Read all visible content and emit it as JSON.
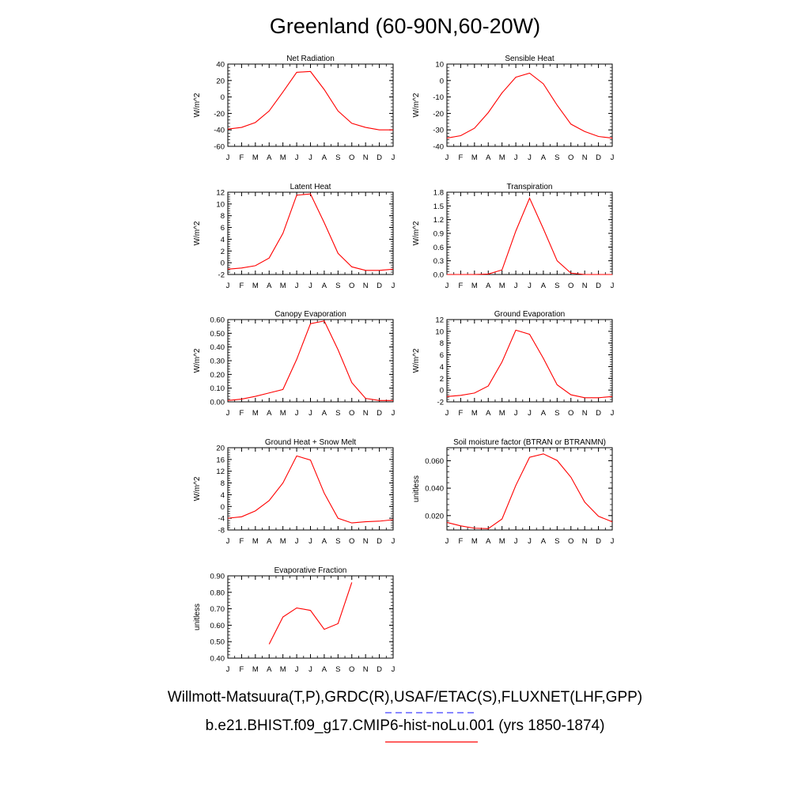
{
  "figure": {
    "title": "Greenland (60-90N,60-20W)",
    "legend": [
      {
        "label": "Willmott-Matsuura(T,P),GRDC(R),USAF/ETAC(S),FLUXNET(LHF,GPP)",
        "color": "#4040ff",
        "style": "dashed"
      },
      {
        "label": "b.e21.BHIST.f09_g17.CMIP6-hist-noLu.001 (yrs 1850-1874)",
        "color": "#ff0000",
        "style": "solid"
      }
    ],
    "line_color": "#ff0000"
  },
  "chart_data": [
    {
      "type": "line",
      "title": "Net Radiation",
      "ylabel": "W/m^2",
      "categories": [
        "J",
        "F",
        "M",
        "A",
        "M",
        "J",
        "J",
        "A",
        "S",
        "O",
        "N",
        "D",
        "J"
      ],
      "ylim": [
        -60,
        40
      ],
      "yticks": [
        -60,
        -40,
        -20,
        0,
        20,
        40
      ],
      "ytick_labels": [
        "-60",
        "-40",
        "-20",
        "0",
        "20",
        "40"
      ],
      "series": [
        {
          "values": [
            -39,
            -37,
            -31,
            -17,
            6,
            30,
            31,
            9,
            -17,
            -32,
            -37,
            -40,
            -40
          ]
        }
      ]
    },
    {
      "type": "line",
      "title": "Sensible Heat",
      "ylabel": "W/m^2",
      "categories": [
        "J",
        "F",
        "M",
        "A",
        "M",
        "J",
        "J",
        "A",
        "S",
        "O",
        "N",
        "D",
        "J"
      ],
      "ylim": [
        -40,
        10
      ],
      "yticks": [
        -40,
        -30,
        -20,
        -10,
        0,
        10
      ],
      "ytick_labels": [
        "-40",
        "-30",
        "-20",
        "-10",
        "0",
        "10"
      ],
      "series": [
        {
          "values": [
            -35,
            -33.5,
            -29,
            -19.5,
            -7.5,
            2,
            4.5,
            -2,
            -15,
            -26.5,
            -31,
            -34,
            -35
          ]
        }
      ]
    },
    {
      "type": "line",
      "title": "Latent Heat",
      "ylabel": "W/m^2",
      "categories": [
        "J",
        "F",
        "M",
        "A",
        "M",
        "J",
        "J",
        "A",
        "S",
        "O",
        "N",
        "D",
        "J"
      ],
      "ylim": [
        -2,
        12
      ],
      "yticks": [
        -2,
        0,
        2,
        4,
        6,
        8,
        10,
        12
      ],
      "ytick_labels": [
        "-2",
        "0",
        "2",
        "4",
        "6",
        "8",
        "10",
        "12"
      ],
      "series": [
        {
          "values": [
            -1.1,
            -0.9,
            -0.5,
            0.8,
            5,
            11.5,
            11.7,
            6.8,
            1.6,
            -0.7,
            -1.3,
            -1.3,
            -1.1
          ]
        }
      ]
    },
    {
      "type": "line",
      "title": "Transpiration",
      "ylabel": "W/m^2",
      "categories": [
        "J",
        "F",
        "M",
        "A",
        "M",
        "J",
        "J",
        "A",
        "S",
        "O",
        "N",
        "D",
        "J"
      ],
      "ylim": [
        0,
        1.8
      ],
      "yticks": [
        0,
        0.3,
        0.6,
        0.9,
        1.2,
        1.5,
        1.8
      ],
      "ytick_labels": [
        "0.0",
        "0.3",
        "0.6",
        "0.9",
        "1.2",
        "1.5",
        "1.8"
      ],
      "series": [
        {
          "values": [
            0,
            0,
            0,
            0.01,
            0.1,
            0.95,
            1.67,
            1.0,
            0.3,
            0.03,
            0,
            0,
            0
          ]
        }
      ]
    },
    {
      "type": "line",
      "title": "Canopy Evaporation",
      "ylabel": "W/m^2",
      "categories": [
        "J",
        "F",
        "M",
        "A",
        "M",
        "J",
        "J",
        "A",
        "S",
        "O",
        "N",
        "D",
        "J"
      ],
      "ylim": [
        0,
        0.6
      ],
      "yticks": [
        0,
        0.1,
        0.2,
        0.3,
        0.4,
        0.5,
        0.6
      ],
      "ytick_labels": [
        "0.00",
        "0.10",
        "0.20",
        "0.30",
        "0.40",
        "0.50",
        "0.60"
      ],
      "series": [
        {
          "values": [
            0.01,
            0.02,
            0.04,
            0.065,
            0.09,
            0.31,
            0.57,
            0.59,
            0.38,
            0.14,
            0.025,
            0.01,
            0.01
          ]
        }
      ]
    },
    {
      "type": "line",
      "title": "Ground Evaporation",
      "ylabel": "W/m^2",
      "categories": [
        "J",
        "F",
        "M",
        "A",
        "M",
        "J",
        "J",
        "A",
        "S",
        "O",
        "N",
        "D",
        "J"
      ],
      "ylim": [
        -2,
        12
      ],
      "yticks": [
        -2,
        0,
        2,
        4,
        6,
        8,
        10,
        12
      ],
      "ytick_labels": [
        "-2",
        "0",
        "2",
        "4",
        "6",
        "8",
        "10",
        "12"
      ],
      "series": [
        {
          "values": [
            -1.1,
            -0.9,
            -0.5,
            0.7,
            4.8,
            10.2,
            9.5,
            5.4,
            0.9,
            -0.8,
            -1.3,
            -1.3,
            -1.1
          ]
        }
      ]
    },
    {
      "type": "line",
      "title": "Ground Heat + Snow Melt",
      "ylabel": "W/m^2",
      "categories": [
        "J",
        "F",
        "M",
        "A",
        "M",
        "J",
        "J",
        "A",
        "S",
        "O",
        "N",
        "D",
        "J"
      ],
      "ylim": [
        -8,
        20
      ],
      "yticks": [
        -8,
        -4,
        0,
        4,
        8,
        12,
        16,
        20
      ],
      "ytick_labels": [
        "-8",
        "-4",
        "0",
        "4",
        "8",
        "12",
        "16",
        "20"
      ],
      "series": [
        {
          "values": [
            -4,
            -3.5,
            -1.5,
            2,
            8,
            17.2,
            15.8,
            4.5,
            -4,
            -5.6,
            -5.2,
            -5,
            -4.5
          ]
        }
      ]
    },
    {
      "type": "line",
      "title": "Soil moisture factor (BTRAN or BTRANMN)",
      "ylabel": "unitless",
      "categories": [
        "J",
        "F",
        "M",
        "A",
        "M",
        "J",
        "J",
        "A",
        "S",
        "O",
        "N",
        "D",
        "J"
      ],
      "ylim": [
        0.0095,
        0.0695
      ],
      "yticks": [
        0.02,
        0.04,
        0.06
      ],
      "ytick_labels": [
        "0.020",
        "0.040",
        "0.060"
      ],
      "series": [
        {
          "values": [
            0.015,
            0.0125,
            0.0108,
            0.0105,
            0.0175,
            0.042,
            0.0625,
            0.065,
            0.0602,
            0.048,
            0.0298,
            0.0195,
            0.0155
          ]
        }
      ]
    },
    {
      "type": "line",
      "title": "Evaporative Fraction",
      "ylabel": "unitless",
      "categories": [
        "J",
        "F",
        "M",
        "A",
        "M",
        "J",
        "J",
        "A",
        "S",
        "O",
        "N",
        "D",
        "J"
      ],
      "ylim": [
        0.4,
        0.9
      ],
      "yticks": [
        0.4,
        0.5,
        0.6,
        0.7,
        0.8,
        0.9
      ],
      "ytick_labels": [
        "0.40",
        "0.50",
        "0.60",
        "0.70",
        "0.80",
        "0.90"
      ],
      "series": [
        {
          "values": [
            null,
            null,
            null,
            0.485,
            0.65,
            0.705,
            0.69,
            0.575,
            0.61,
            0.86,
            null,
            null,
            null
          ]
        }
      ]
    }
  ]
}
